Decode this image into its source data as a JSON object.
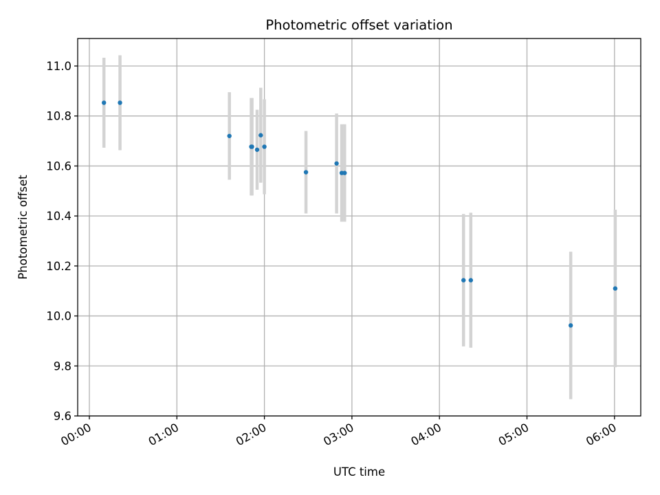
{
  "chart_data": {
    "type": "scatter",
    "title": "Photometric offset variation",
    "xlabel": "UTC time",
    "ylabel": "Photometric offset",
    "x_axis_type": "time",
    "x_ticks": [
      "00:00",
      "01:00",
      "02:00",
      "03:00",
      "04:00",
      "05:00",
      "06:00"
    ],
    "xlim": [
      "23:52",
      "06:18"
    ],
    "y_ticks": [
      "9.6",
      "9.8",
      "10.0",
      "10.2",
      "10.4",
      "10.6",
      "10.8",
      "11.0"
    ],
    "ylim": [
      9.6,
      11.11
    ],
    "grid": true,
    "colors": {
      "point": "#1f77b4",
      "errorbar": "#d3d3d3"
    },
    "points": [
      {
        "x": "00:10",
        "y": 10.853,
        "err": 0.18
      },
      {
        "x": "00:21",
        "y": 10.853,
        "err": 0.19
      },
      {
        "x": "01:36",
        "y": 10.72,
        "err": 0.175
      },
      {
        "x": "01:51",
        "y": 10.677,
        "err": 0.195
      },
      {
        "x": "01:51.5",
        "y": 10.677,
        "err": 0.195
      },
      {
        "x": "01:55",
        "y": 10.665,
        "err": 0.16
      },
      {
        "x": "01:57.5",
        "y": 10.723,
        "err": 0.19
      },
      {
        "x": "02:00",
        "y": 10.677,
        "err": 0.19
      },
      {
        "x": "02:28.5",
        "y": 10.575,
        "err": 0.165
      },
      {
        "x": "02:49.5",
        "y": 10.61,
        "err": 0.2
      },
      {
        "x": "02:53",
        "y": 10.572,
        "err": 0.195
      },
      {
        "x": "02:55",
        "y": 10.572,
        "err": 0.195
      },
      {
        "x": "04:16.5",
        "y": 10.143,
        "err": 0.265
      },
      {
        "x": "04:21.5",
        "y": 10.143,
        "err": 0.27
      },
      {
        "x": "05:30",
        "y": 9.962,
        "err": 0.295
      },
      {
        "x": "06:00.5",
        "y": 10.11,
        "err": 0.315
      }
    ]
  }
}
